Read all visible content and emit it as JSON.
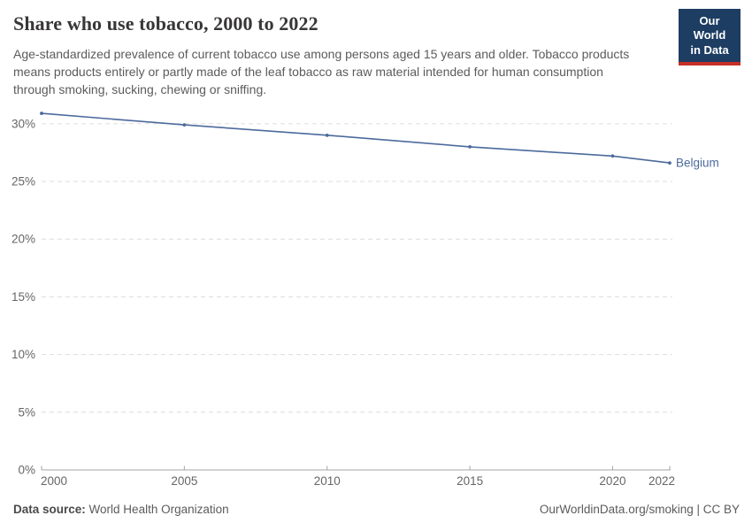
{
  "header": {
    "title": "Share who use tobacco, 2000 to 2022",
    "subtitle": "Age-standardized prevalence of current tobacco use among persons aged 15 years and older. Tobacco products means products entirely or partly made of the leaf tobacco as raw material intended for human consumption through smoking, sucking, chewing or sniffing.",
    "logo": {
      "line1": "Our World",
      "line2": "in Data"
    }
  },
  "chart_data": {
    "type": "line",
    "title": "Share who use tobacco, 2000 to 2022",
    "xlabel": "",
    "ylabel": "",
    "grid": "dashed-horizontal",
    "legend_position": "end-of-line-label",
    "xlim": [
      2000,
      2022
    ],
    "ylim": [
      0,
      32
    ],
    "x_ticks": [
      2000,
      2005,
      2010,
      2015,
      2020,
      2022
    ],
    "y_ticks": [
      {
        "value": 0,
        "label": "0%"
      },
      {
        "value": 5,
        "label": "5%"
      },
      {
        "value": 10,
        "label": "10%"
      },
      {
        "value": 15,
        "label": "15%"
      },
      {
        "value": 20,
        "label": "20%"
      },
      {
        "value": 25,
        "label": "25%"
      },
      {
        "value": 30,
        "label": "30%"
      }
    ],
    "series": [
      {
        "name": "Belgium",
        "color": "#4c6a9c",
        "x": [
          2000,
          2005,
          2010,
          2015,
          2020,
          2022
        ],
        "values": [
          30.9,
          29.9,
          29.0,
          28.0,
          27.2,
          26.6
        ]
      }
    ]
  },
  "footer": {
    "source_label": "Data source:",
    "source_value": "World Health Organization",
    "credit": "OurWorldinData.org/smoking | CC BY"
  },
  "colors": {
    "title": "#383636",
    "subtitle": "#5b5b5b",
    "tick_text": "#666666",
    "gridline": "#dddddd",
    "axis_line": "#a5a5a5",
    "series_blue": "#4c6a9c",
    "logo_navy": "#1d3d63",
    "logo_red": "#c62f27"
  }
}
